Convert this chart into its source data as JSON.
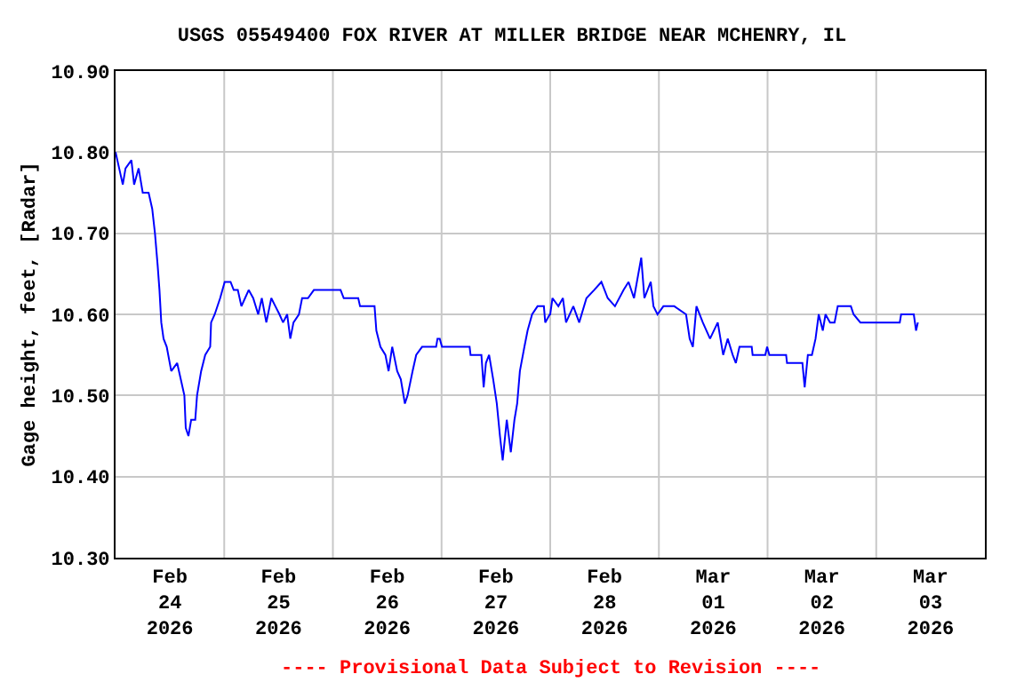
{
  "chart_data": {
    "type": "line",
    "title": "USGS 05549400 FOX RIVER AT MILLER BRIDGE NEAR MCHENRY, IL",
    "ylabel": "Gage height, feet, [Radar]",
    "annotations": [
      "---- Provisional Data Subject to Revision ----"
    ],
    "grid": true,
    "xlim": [
      "2026-02-24T00:00",
      "2026-03-04T00:00"
    ],
    "xticks": [
      {
        "value": "2026-02-24T12:00",
        "label": "Feb\n24\n2026"
      },
      {
        "value": "2026-02-25T12:00",
        "label": "Feb\n25\n2026"
      },
      {
        "value": "2026-02-26T12:00",
        "label": "Feb\n26\n2026"
      },
      {
        "value": "2026-02-27T12:00",
        "label": "Feb\n27\n2026"
      },
      {
        "value": "2026-02-28T12:00",
        "label": "Feb\n28\n2026"
      },
      {
        "value": "2026-03-01T12:00",
        "label": "Mar\n01\n2026"
      },
      {
        "value": "2026-03-02T12:00",
        "label": "Mar\n02\n2026"
      },
      {
        "value": "2026-03-03T12:00",
        "label": "Mar\n03\n2026"
      },
      {
        "value": "2026-02-25T00:00",
        "label": null
      },
      {
        "value": "2026-02-26T00:00",
        "label": null
      },
      {
        "value": "2026-02-27T00:00",
        "label": null
      },
      {
        "value": "2026-02-28T00:00",
        "label": null
      },
      {
        "value": "2026-03-01T00:00",
        "label": null
      },
      {
        "value": "2026-03-02T00:00",
        "label": null
      },
      {
        "value": "2026-03-03T00:00",
        "label": null
      }
    ],
    "ylim": [
      10.3,
      10.9
    ],
    "yticks": [
      {
        "value": 10.3,
        "label": "10.30"
      },
      {
        "value": 10.4,
        "label": "10.40"
      },
      {
        "value": 10.5,
        "label": "10.50"
      },
      {
        "value": 10.6,
        "label": "10.60"
      },
      {
        "value": 10.7,
        "label": "10.70"
      },
      {
        "value": 10.8,
        "label": "10.80"
      },
      {
        "value": 10.9,
        "label": "10.90"
      }
    ],
    "series": [
      {
        "color": "#0000ff",
        "x": [
          "2026-02-24T00:00",
          "2026-02-24T00:48",
          "2026-02-24T01:36",
          "2026-02-24T02:12",
          "2026-02-24T03:30",
          "2026-02-24T04:06",
          "2026-02-24T05:06",
          "2026-02-24T06:00",
          "2026-02-24T07:18",
          "2026-02-24T08:06",
          "2026-02-24T08:42",
          "2026-02-24T09:18",
          "2026-02-24T09:42",
          "2026-02-24T10:06",
          "2026-02-24T10:36",
          "2026-02-24T11:18",
          "2026-02-24T12:18",
          "2026-02-24T13:36",
          "2026-02-24T14:24",
          "2026-02-24T15:12",
          "2026-02-24T15:30",
          "2026-02-24T16:06",
          "2026-02-24T16:42",
          "2026-02-24T17:36",
          "2026-02-24T18:00",
          "2026-02-24T18:54",
          "2026-02-24T19:48",
          "2026-02-24T20:54",
          "2026-02-24T21:06",
          "2026-02-24T21:54",
          "2026-02-24T23:06",
          "2026-02-25T00:06",
          "2026-02-25T01:24",
          "2026-02-25T02:06",
          "2026-02-25T03:00",
          "2026-02-25T03:48",
          "2026-02-25T04:36",
          "2026-02-25T05:24",
          "2026-02-25T06:24",
          "2026-02-25T07:30",
          "2026-02-25T08:18",
          "2026-02-25T09:18",
          "2026-02-25T10:24",
          "2026-02-25T11:18",
          "2026-02-25T12:12",
          "2026-02-25T13:00",
          "2026-02-25T13:54",
          "2026-02-25T14:36",
          "2026-02-25T15:18",
          "2026-02-25T16:30",
          "2026-02-25T17:12",
          "2026-02-25T18:30",
          "2026-02-25T19:48",
          "2026-02-25T20:18",
          "2026-02-26T01:42",
          "2026-02-26T02:24",
          "2026-02-26T05:36",
          "2026-02-26T06:00",
          "2026-02-26T09:12",
          "2026-02-26T09:36",
          "2026-02-26T10:30",
          "2026-02-26T11:36",
          "2026-02-26T12:18",
          "2026-02-26T13:06",
          "2026-02-26T14:12",
          "2026-02-26T15:00",
          "2026-02-26T15:54",
          "2026-02-26T16:30",
          "2026-02-26T17:36",
          "2026-02-26T18:24",
          "2026-02-26T19:42",
          "2026-02-26T22:48",
          "2026-02-26T23:06",
          "2026-02-26T23:36",
          "2026-02-27T00:06",
          "2026-02-27T06:12",
          "2026-02-27T06:24",
          "2026-02-27T08:48",
          "2026-02-27T09:18",
          "2026-02-27T09:48",
          "2026-02-27T10:30",
          "2026-02-27T11:24",
          "2026-02-27T12:12",
          "2026-02-27T12:54",
          "2026-02-27T13:30",
          "2026-02-27T14:24",
          "2026-02-27T15:18",
          "2026-02-27T16:06",
          "2026-02-27T16:42",
          "2026-02-27T17:18",
          "2026-02-27T18:18",
          "2026-02-27T19:00",
          "2026-02-27T20:00",
          "2026-02-27T21:12",
          "2026-02-27T22:36",
          "2026-02-27T22:54",
          "2026-02-27T23:54",
          "2026-02-28T00:00",
          "2026-02-28T00:30",
          "2026-02-28T01:48",
          "2026-02-28T02:48",
          "2026-02-28T03:30",
          "2026-02-28T05:06",
          "2026-02-28T06:24",
          "2026-02-28T08:00",
          "2026-02-28T09:42",
          "2026-02-28T11:18",
          "2026-02-28T12:42",
          "2026-02-28T14:18",
          "2026-02-28T16:12",
          "2026-02-28T17:18",
          "2026-02-28T18:30",
          "2026-02-28T20:06",
          "2026-02-28T20:48",
          "2026-02-28T22:12",
          "2026-02-28T22:48",
          "2026-02-28T23:42",
          "2026-03-01T01:00",
          "2026-03-01T03:24",
          "2026-03-01T06:00",
          "2026-03-01T06:48",
          "2026-03-01T07:30",
          "2026-03-01T08:18",
          "2026-03-01T09:42",
          "2026-03-01T11:18",
          "2026-03-01T13:00",
          "2026-03-01T14:12",
          "2026-03-01T15:12",
          "2026-03-01T16:18",
          "2026-03-01T17:00",
          "2026-03-01T17:48",
          "2026-03-01T20:30",
          "2026-03-01T20:42",
          "2026-03-01T23:30",
          "2026-03-01T23:54",
          "2026-03-02T00:24",
          "2026-03-02T04:06",
          "2026-03-02T04:18",
          "2026-03-02T07:42",
          "2026-03-02T08:12",
          "2026-03-02T08:54",
          "2026-03-02T09:48",
          "2026-03-02T10:36",
          "2026-03-02T11:18",
          "2026-03-02T12:12",
          "2026-03-02T12:48",
          "2026-03-02T13:48",
          "2026-03-02T14:48",
          "2026-03-02T15:30",
          "2026-03-02T18:24",
          "2026-03-02T19:00",
          "2026-03-02T20:30",
          "2026-03-03T05:12",
          "2026-03-03T05:30",
          "2026-03-03T08:18",
          "2026-03-03T08:48",
          "2026-03-03T09:12"
        ],
        "values": [
          10.8,
          10.78,
          10.76,
          10.78,
          10.79,
          10.76,
          10.78,
          10.75,
          10.75,
          10.73,
          10.7,
          10.66,
          10.63,
          10.59,
          10.57,
          10.56,
          10.53,
          10.54,
          10.52,
          10.5,
          10.46,
          10.45,
          10.47,
          10.47,
          10.5,
          10.53,
          10.55,
          10.56,
          10.59,
          10.6,
          10.62,
          10.64,
          10.64,
          10.63,
          10.63,
          10.61,
          10.62,
          10.63,
          10.62,
          10.6,
          10.62,
          10.59,
          10.62,
          10.61,
          10.6,
          10.59,
          10.6,
          10.57,
          10.59,
          10.6,
          10.62,
          10.62,
          10.63,
          10.63,
          10.63,
          10.62,
          10.62,
          10.61,
          10.61,
          10.58,
          10.56,
          10.55,
          10.53,
          10.56,
          10.53,
          10.52,
          10.49,
          10.5,
          10.53,
          10.55,
          10.56,
          10.56,
          10.57,
          10.57,
          10.56,
          10.56,
          10.55,
          10.55,
          10.51,
          10.54,
          10.55,
          10.52,
          10.49,
          10.45,
          10.42,
          10.47,
          10.43,
          10.47,
          10.49,
          10.53,
          10.56,
          10.58,
          10.6,
          10.61,
          10.61,
          10.59,
          10.6,
          10.6,
          10.62,
          10.61,
          10.62,
          10.59,
          10.61,
          10.59,
          10.62,
          10.63,
          10.64,
          10.62,
          10.61,
          10.63,
          10.64,
          10.62,
          10.67,
          10.62,
          10.64,
          10.61,
          10.6,
          10.61,
          10.61,
          10.6,
          10.57,
          10.56,
          10.61,
          10.59,
          10.57,
          10.59,
          10.55,
          10.57,
          10.55,
          10.54,
          10.56,
          10.56,
          10.55,
          10.55,
          10.56,
          10.55,
          10.55,
          10.54,
          10.54,
          10.51,
          10.55,
          10.55,
          10.57,
          10.6,
          10.58,
          10.6,
          10.59,
          10.59,
          10.61,
          10.61,
          10.6,
          10.59,
          10.59,
          10.6,
          10.6,
          10.58,
          10.59
        ]
      }
    ]
  }
}
